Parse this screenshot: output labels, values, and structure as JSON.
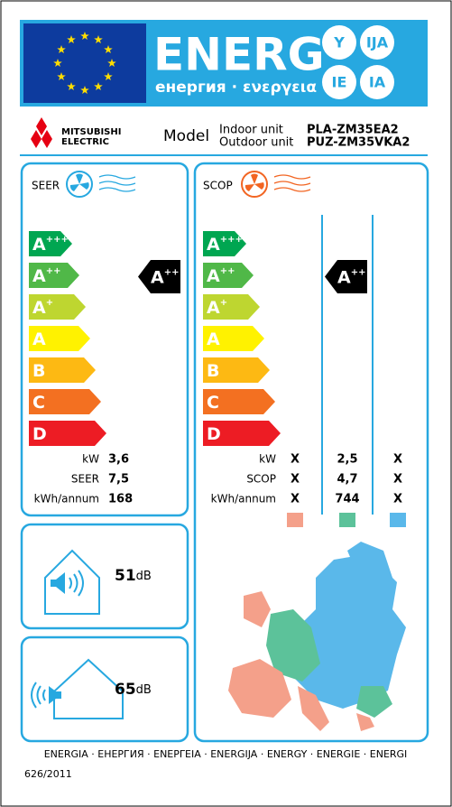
{
  "header": {
    "title": "ENERG",
    "subtitle": "енергия · ενεργεια",
    "badges": [
      "Y",
      "IJA",
      "IE",
      "IA"
    ]
  },
  "supplier": {
    "brand": [
      "MITSUBISHI",
      "ELECTRIC"
    ],
    "model_label": "Model",
    "indoor_label": "Indoor unit",
    "outdoor_label": "Outdoor unit",
    "indoor_model": "PLA-ZM35EA2",
    "outdoor_model": "PUZ-ZM35VKA2"
  },
  "classes": [
    {
      "letter": "A",
      "sup": "+++"
    },
    {
      "letter": "A",
      "sup": "++"
    },
    {
      "letter": "A",
      "sup": "+"
    },
    {
      "letter": "A",
      "sup": ""
    },
    {
      "letter": "B",
      "sup": ""
    },
    {
      "letter": "C",
      "sup": ""
    },
    {
      "letter": "D",
      "sup": ""
    }
  ],
  "seer": {
    "label": "SEER",
    "rating": {
      "letter": "A",
      "sup": "++"
    },
    "rows": [
      {
        "label": "kW",
        "value": "3,6"
      },
      {
        "label": "SEER",
        "value": "7,5"
      },
      {
        "label": "kWh/annum",
        "value": "168"
      }
    ]
  },
  "scop": {
    "label": "SCOP",
    "rating": {
      "letter": "A",
      "sup": "++"
    },
    "rows": [
      {
        "label": "kW",
        "values": [
          "X",
          "2,5",
          "X"
        ]
      },
      {
        "label": "SCOP",
        "values": [
          "X",
          "4,7",
          "X"
        ]
      },
      {
        "label": "kWh/annum",
        "values": [
          "X",
          "744",
          "X"
        ]
      }
    ]
  },
  "noise": {
    "indoor": {
      "value": "51",
      "unit": "dB"
    },
    "outdoor": {
      "value": "65",
      "unit": "dB"
    }
  },
  "footer": {
    "languages": "ENERGIA · ЕНЕРГИЯ · ΕΝΕΡΓΕΙΑ · ENERGIJA · ENERGY · ENERGIE · ENERGI",
    "regulation": "626/2011"
  }
}
